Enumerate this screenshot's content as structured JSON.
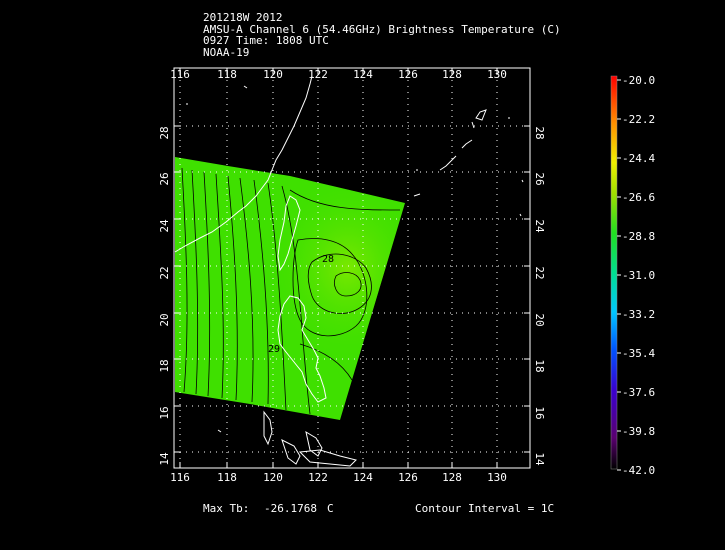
{
  "header": {
    "line1": "201218W 2012",
    "line2": "AMSU-A Channel 6 (54.46GHz) Brightness Temperature (C)",
    "line3": "0927 Time: 1808 UTC",
    "line4": "NOAA-19"
  },
  "map": {
    "lon_ticks": [
      "116",
      "118",
      "120",
      "122",
      "124",
      "126",
      "128",
      "130"
    ],
    "lat_ticks": [
      "14",
      "16",
      "18",
      "20",
      "22",
      "24",
      "26",
      "28"
    ],
    "contour_labels": [
      "28",
      "29"
    ],
    "swath_color": "#3fe000"
  },
  "colorbar": {
    "labels": [
      "-20.0",
      "-22.2",
      "-24.4",
      "-26.6",
      "-28.8",
      "-31.0",
      "-33.2",
      "-35.4",
      "-37.6",
      "-39.8",
      "-42.0"
    ]
  },
  "footer": {
    "max_label": "Max Tb:",
    "max_value": "-26.1768",
    "max_unit": "C",
    "contour_label": "Contour Interval = 1C"
  }
}
